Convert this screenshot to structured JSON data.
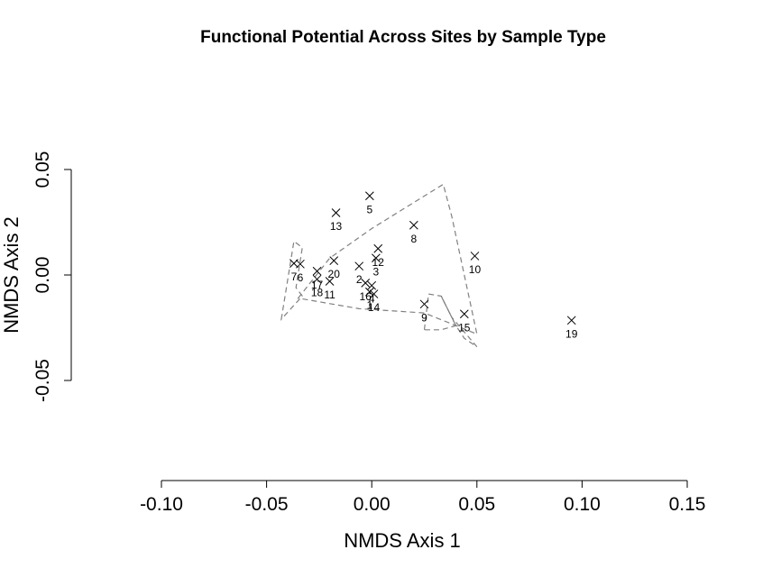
{
  "chart_data": {
    "type": "scatter",
    "title": "Functional Potential Across Sites by Sample Type",
    "xlabel": "NMDS Axis 1",
    "ylabel": "NMDS Axis 2",
    "xlim": [
      -0.1,
      0.15
    ],
    "ylim": [
      -0.05,
      0.05
    ],
    "x_ticks": [
      "-0.10",
      "-0.05",
      "0.00",
      "0.05",
      "0.10",
      "0.15"
    ],
    "y_ticks": [
      "-0.05",
      "0.00",
      "0.05"
    ],
    "x_tick_values": [
      -0.1,
      -0.05,
      0.0,
      0.05,
      0.1,
      0.15
    ],
    "y_tick_values": [
      -0.05,
      0.0,
      0.05
    ],
    "marker": "x",
    "grid": false,
    "points": [
      {
        "label": "1",
        "x": -0.001,
        "y": -0.008
      },
      {
        "label": "2",
        "x": -0.006,
        "y": 0.0042
      },
      {
        "label": "3",
        "x": 0.002,
        "y": 0.008
      },
      {
        "label": "4",
        "x": 0.0,
        "y": -0.005
      },
      {
        "label": "5",
        "x": -0.001,
        "y": 0.0375
      },
      {
        "label": "6",
        "x": -0.034,
        "y": 0.0052
      },
      {
        "label": "7",
        "x": -0.037,
        "y": 0.0055
      },
      {
        "label": "8",
        "x": 0.02,
        "y": 0.0236
      },
      {
        "label": "9",
        "x": 0.025,
        "y": -0.0138
      },
      {
        "label": "10",
        "x": 0.049,
        "y": 0.009
      },
      {
        "label": "11",
        "x": -0.02,
        "y": -0.003
      },
      {
        "label": "12",
        "x": 0.003,
        "y": 0.0125
      },
      {
        "label": "13",
        "x": -0.017,
        "y": 0.0295
      },
      {
        "label": "14",
        "x": 0.001,
        "y": -0.009
      },
      {
        "label": "15",
        "x": 0.044,
        "y": -0.0185
      },
      {
        "label": "16",
        "x": -0.003,
        "y": -0.0038
      },
      {
        "label": "17",
        "x": -0.026,
        "y": 0.0018
      },
      {
        "label": "18",
        "x": -0.026,
        "y": -0.002
      },
      {
        "label": "19",
        "x": 0.095,
        "y": -0.0215
      },
      {
        "label": "20",
        "x": -0.018,
        "y": 0.0068
      }
    ],
    "hulls": [
      {
        "points": [
          [
            -0.043,
            -0.021
          ],
          [
            -0.037,
            0.016
          ],
          [
            -0.033,
            0.013
          ],
          [
            -0.036,
            -0.006
          ],
          [
            -0.033,
            -0.01
          ]
        ]
      },
      {
        "points": [
          [
            -0.035,
            -0.011
          ],
          [
            -0.02,
            0.008
          ],
          [
            0.0,
            0.022
          ],
          [
            0.034,
            0.043
          ],
          [
            0.038,
            0.028
          ],
          [
            0.05,
            -0.028
          ],
          [
            0.025,
            -0.018
          ],
          [
            -0.006,
            -0.016
          ]
        ]
      },
      {
        "points": [
          [
            0.025,
            -0.026
          ],
          [
            0.027,
            -0.009
          ],
          [
            0.033,
            -0.01
          ],
          [
            0.04,
            -0.024
          ],
          [
            0.033,
            -0.026
          ]
        ]
      },
      {
        "points": [
          [
            0.033,
            -0.01
          ],
          [
            0.04,
            -0.024
          ],
          [
            0.044,
            -0.03
          ],
          [
            0.05,
            -0.034
          ],
          [
            0.038,
            -0.02
          ]
        ]
      }
    ]
  }
}
